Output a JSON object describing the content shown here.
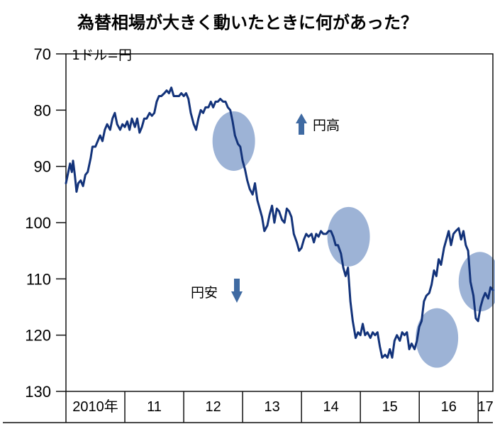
{
  "chart_data": {
    "type": "line",
    "title": "為替相場が大きく動いたときに何があった？",
    "unit_label": "1ドル=円",
    "x_tick_labels": [
      "2010年",
      "11",
      "12",
      "13",
      "14",
      "15",
      "16",
      "17"
    ],
    "y_ticks": [
      70,
      80,
      90,
      100,
      110,
      120,
      130
    ],
    "ylim": [
      70,
      130
    ],
    "y_inverted": true,
    "xlim": [
      2010.0,
      2017.25
    ],
    "annotations": {
      "yen_strong": "円高",
      "yen_weak": "円安"
    },
    "highlight_periods": [
      {
        "x_center": 2012.85,
        "y_center": 85.5
      },
      {
        "x_center": 2014.8,
        "y_center": 102.5
      },
      {
        "x_center": 2016.3,
        "y_center": 120.5
      },
      {
        "x_center": 2017.03,
        "y_center": 110.5
      }
    ],
    "series": [
      {
        "line_color": "#13337a",
        "highlight_color": "#9db3d6",
        "points": [
          [
            2010.0,
            93
          ],
          [
            2010.04,
            91
          ],
          [
            2010.07,
            89.5
          ],
          [
            2010.1,
            91
          ],
          [
            2010.12,
            89
          ],
          [
            2010.15,
            91.5
          ],
          [
            2010.18,
            94.5
          ],
          [
            2010.21,
            93
          ],
          [
            2010.25,
            92.5
          ],
          [
            2010.29,
            93.5
          ],
          [
            2010.33,
            91.5
          ],
          [
            2010.37,
            91
          ],
          [
            2010.42,
            88.5
          ],
          [
            2010.45,
            86.5
          ],
          [
            2010.5,
            86.5
          ],
          [
            2010.54,
            85.5
          ],
          [
            2010.58,
            84.5
          ],
          [
            2010.62,
            85.5
          ],
          [
            2010.66,
            83.5
          ],
          [
            2010.7,
            82.5
          ],
          [
            2010.75,
            83.5
          ],
          [
            2010.79,
            81.5
          ],
          [
            2010.83,
            80.5
          ],
          [
            2010.87,
            82.5
          ],
          [
            2010.92,
            83.5
          ],
          [
            2010.96,
            82.5
          ],
          [
            2011.0,
            83
          ],
          [
            2011.04,
            82
          ],
          [
            2011.08,
            83.5
          ],
          [
            2011.12,
            81.5
          ],
          [
            2011.17,
            83
          ],
          [
            2011.21,
            81.5
          ],
          [
            2011.25,
            84
          ],
          [
            2011.29,
            83
          ],
          [
            2011.33,
            81.5
          ],
          [
            2011.37,
            81.5
          ],
          [
            2011.42,
            80.5
          ],
          [
            2011.46,
            81
          ],
          [
            2011.5,
            80.5
          ],
          [
            2011.54,
            78.5
          ],
          [
            2011.58,
            77.5
          ],
          [
            2011.62,
            77.5
          ],
          [
            2011.67,
            77
          ],
          [
            2011.71,
            76.5
          ],
          [
            2011.75,
            77
          ],
          [
            2011.79,
            76
          ],
          [
            2011.83,
            77.5
          ],
          [
            2011.87,
            77.5
          ],
          [
            2011.92,
            77.5
          ],
          [
            2011.96,
            77
          ],
          [
            2012.0,
            77.5
          ],
          [
            2012.04,
            77
          ],
          [
            2012.08,
            78
          ],
          [
            2012.12,
            80.5
          ],
          [
            2012.17,
            82.5
          ],
          [
            2012.21,
            83.5
          ],
          [
            2012.25,
            81.5
          ],
          [
            2012.29,
            80
          ],
          [
            2012.33,
            80.5
          ],
          [
            2012.37,
            79.5
          ],
          [
            2012.42,
            79.5
          ],
          [
            2012.46,
            78.5
          ],
          [
            2012.5,
            79.5
          ],
          [
            2012.54,
            78.5
          ],
          [
            2012.58,
            78.5
          ],
          [
            2012.62,
            78
          ],
          [
            2012.67,
            78.5
          ],
          [
            2012.71,
            78.5
          ],
          [
            2012.75,
            79.5
          ],
          [
            2012.79,
            80
          ],
          [
            2012.83,
            82
          ],
          [
            2012.87,
            84.5
          ],
          [
            2012.92,
            86
          ],
          [
            2012.96,
            86.5
          ],
          [
            2013.0,
            89
          ],
          [
            2013.04,
            90.5
          ],
          [
            2013.08,
            92.5
          ],
          [
            2013.12,
            94
          ],
          [
            2013.17,
            95
          ],
          [
            2013.21,
            93
          ],
          [
            2013.25,
            96
          ],
          [
            2013.29,
            97.5
          ],
          [
            2013.33,
            99
          ],
          [
            2013.37,
            101.5
          ],
          [
            2013.42,
            100.5
          ],
          [
            2013.46,
            98.5
          ],
          [
            2013.5,
            97
          ],
          [
            2013.54,
            100
          ],
          [
            2013.58,
            97.5
          ],
          [
            2013.62,
            98
          ],
          [
            2013.67,
            99.5
          ],
          [
            2013.71,
            100
          ],
          [
            2013.75,
            97.5
          ],
          [
            2013.79,
            98
          ],
          [
            2013.83,
            99
          ],
          [
            2013.87,
            102
          ],
          [
            2013.92,
            103.5
          ],
          [
            2013.96,
            105
          ],
          [
            2014.0,
            104.5
          ],
          [
            2014.04,
            103
          ],
          [
            2014.08,
            102
          ],
          [
            2014.12,
            102.5
          ],
          [
            2014.17,
            102
          ],
          [
            2014.21,
            103.5
          ],
          [
            2014.25,
            102
          ],
          [
            2014.29,
            102.5
          ],
          [
            2014.33,
            101.5
          ],
          [
            2014.37,
            102
          ],
          [
            2014.42,
            102
          ],
          [
            2014.46,
            101.5
          ],
          [
            2014.5,
            101.5
          ],
          [
            2014.54,
            102.5
          ],
          [
            2014.58,
            104
          ],
          [
            2014.62,
            104
          ],
          [
            2014.67,
            105.5
          ],
          [
            2014.71,
            108
          ],
          [
            2014.75,
            109.5
          ],
          [
            2014.79,
            108
          ],
          [
            2014.83,
            114
          ],
          [
            2014.87,
            117.5
          ],
          [
            2014.92,
            120.5
          ],
          [
            2014.96,
            119.5
          ],
          [
            2015.0,
            120
          ],
          [
            2015.04,
            118
          ],
          [
            2015.08,
            120
          ],
          [
            2015.12,
            119.5
          ],
          [
            2015.17,
            120.5
          ],
          [
            2015.21,
            119.5
          ],
          [
            2015.25,
            120
          ],
          [
            2015.29,
            119.5
          ],
          [
            2015.33,
            122
          ],
          [
            2015.37,
            124
          ],
          [
            2015.42,
            123.5
          ],
          [
            2015.46,
            124
          ],
          [
            2015.5,
            122.5
          ],
          [
            2015.54,
            124
          ],
          [
            2015.58,
            121
          ],
          [
            2015.62,
            120
          ],
          [
            2015.67,
            121
          ],
          [
            2015.71,
            119.5
          ],
          [
            2015.75,
            120
          ],
          [
            2015.79,
            119.5
          ],
          [
            2015.83,
            122.5
          ],
          [
            2015.87,
            121.5
          ],
          [
            2015.92,
            122.5
          ],
          [
            2015.96,
            121
          ],
          [
            2016.0,
            118.5
          ],
          [
            2016.04,
            117.5
          ],
          [
            2016.08,
            114
          ],
          [
            2016.12,
            113
          ],
          [
            2016.17,
            112.5
          ],
          [
            2016.21,
            111
          ],
          [
            2016.25,
            108.5
          ],
          [
            2016.29,
            109.5
          ],
          [
            2016.33,
            106.5
          ],
          [
            2016.37,
            107.5
          ],
          [
            2016.42,
            104.5
          ],
          [
            2016.46,
            103
          ],
          [
            2016.5,
            101.5
          ],
          [
            2016.54,
            104
          ],
          [
            2016.58,
            102
          ],
          [
            2016.62,
            101.5
          ],
          [
            2016.67,
            101
          ],
          [
            2016.71,
            103
          ],
          [
            2016.75,
            101.5
          ],
          [
            2016.79,
            104
          ],
          [
            2016.83,
            105
          ],
          [
            2016.87,
            110.5
          ],
          [
            2016.92,
            113
          ],
          [
            2016.96,
            117
          ],
          [
            2017.0,
            117.5
          ],
          [
            2017.04,
            115
          ],
          [
            2017.08,
            113.5
          ],
          [
            2017.12,
            112.5
          ],
          [
            2017.17,
            113.5
          ],
          [
            2017.21,
            111.5
          ],
          [
            2017.25,
            112
          ]
        ]
      }
    ]
  }
}
